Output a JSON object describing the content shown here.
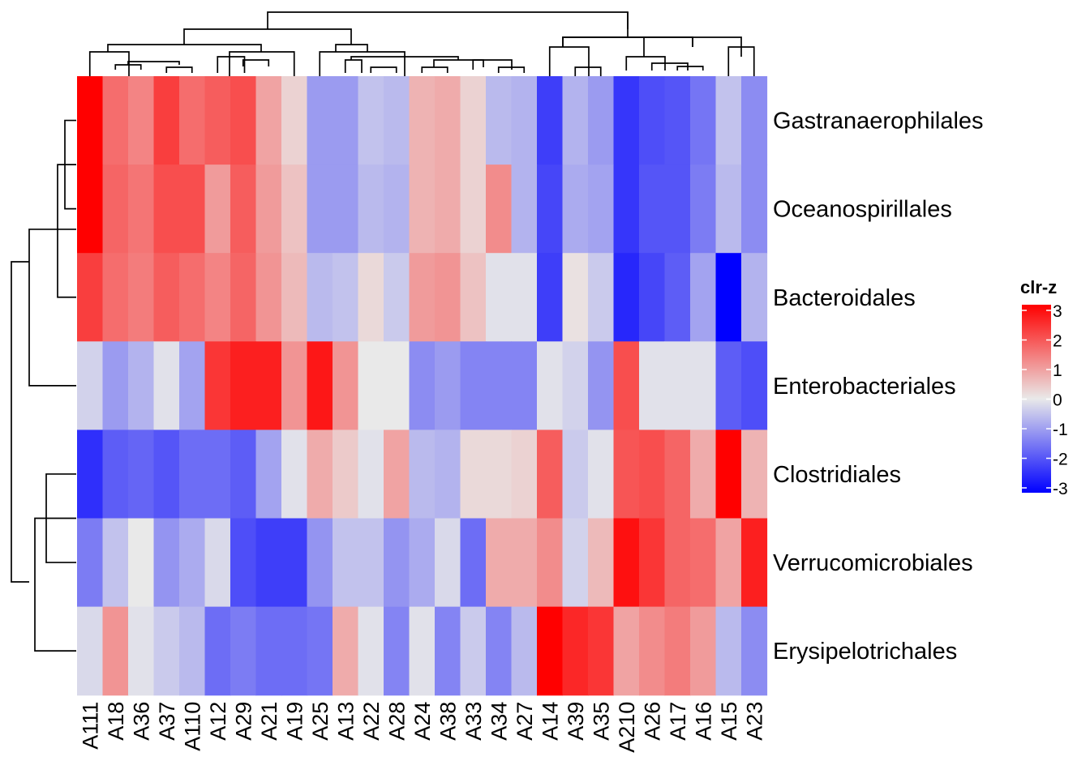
{
  "chart_data": {
    "type": "heatmap",
    "title": "",
    "xlabel": "",
    "ylabel": "",
    "rows": [
      "Gastranaerophilales",
      "Oceanospirillales",
      "Bacteroidales",
      "Enterobacteriales",
      "Clostridiales",
      "Verrucomicrobiales",
      "Erysipelotrichales"
    ],
    "columns": [
      "A111",
      "A18",
      "A36",
      "A37",
      "A110",
      "A12",
      "A29",
      "A21",
      "A19",
      "A25",
      "A13",
      "A22",
      "A28",
      "A24",
      "A38",
      "A33",
      "A34",
      "A27",
      "A14",
      "A39",
      "A35",
      "A210",
      "A26",
      "A17",
      "A16",
      "A15",
      "A23"
    ],
    "values": [
      [
        3.0,
        1.6,
        1.3,
        2.2,
        1.6,
        1.8,
        2.0,
        0.9,
        0.3,
        -1.0,
        -1.0,
        -0.5,
        -0.6,
        0.7,
        0.8,
        0.3,
        -0.6,
        -0.7,
        -2.2,
        -0.7,
        -1.0,
        -2.3,
        -2.0,
        -1.9,
        -1.5,
        -0.5,
        -1.2
      ],
      [
        3.0,
        1.7,
        1.5,
        2.0,
        2.0,
        1.0,
        1.8,
        1.0,
        0.5,
        -1.0,
        -1.0,
        -0.6,
        -0.7,
        0.7,
        0.8,
        0.3,
        1.2,
        -0.7,
        -2.1,
        -0.8,
        -0.9,
        -2.3,
        -1.9,
        -1.9,
        -1.4,
        -0.6,
        -1.2
      ],
      [
        2.2,
        1.6,
        1.4,
        1.8,
        1.6,
        1.3,
        1.7,
        1.1,
        0.6,
        -0.6,
        -0.5,
        0.2,
        -0.4,
        1.0,
        1.1,
        0.5,
        -0.1,
        -0.1,
        -2.2,
        0.1,
        -0.4,
        -2.5,
        -2.1,
        -1.8,
        -0.9,
        -3.0,
        -0.7
      ],
      [
        -0.3,
        -1.0,
        -0.7,
        -0.1,
        -0.9,
        2.3,
        2.6,
        2.6,
        1.1,
        2.7,
        1.1,
        0.0,
        0.0,
        -1.2,
        -1.0,
        -1.3,
        -1.3,
        -1.3,
        -0.1,
        -0.3,
        -1.1,
        2.0,
        -0.1,
        -0.1,
        -0.1,
        -1.8,
        -2.0
      ],
      [
        -2.4,
        -1.8,
        -1.7,
        -1.9,
        -1.6,
        -1.6,
        -1.8,
        -0.9,
        -0.1,
        0.8,
        0.4,
        -0.1,
        0.9,
        -0.6,
        -0.7,
        0.2,
        0.2,
        0.3,
        1.8,
        -0.4,
        -0.1,
        1.9,
        2.0,
        1.7,
        0.8,
        3.0,
        0.7
      ],
      [
        -1.4,
        -0.5,
        0.0,
        -1.1,
        -0.8,
        -0.2,
        -2.0,
        -2.2,
        -2.2,
        -1.1,
        -0.5,
        -0.5,
        -1.1,
        -0.8,
        -0.2,
        -1.6,
        0.8,
        0.8,
        1.2,
        -0.3,
        0.6,
        2.8,
        2.3,
        1.7,
        1.6,
        0.9,
        2.6
      ],
      [
        -0.2,
        1.1,
        -0.1,
        -0.4,
        -0.6,
        -1.6,
        -1.4,
        -1.6,
        -1.6,
        -1.5,
        0.8,
        -0.1,
        -1.3,
        -0.1,
        -1.3,
        -0.4,
        -1.3,
        -0.6,
        3.0,
        2.5,
        2.3,
        0.9,
        1.2,
        1.4,
        1.0,
        -0.6,
        -1.2
      ]
    ],
    "legend": {
      "title": "clr-z",
      "ticks": [
        "3",
        "2",
        "1",
        "0",
        "-1",
        "-2",
        "-3"
      ],
      "range": [
        -3,
        3
      ],
      "colors": {
        "low": "#0000FF",
        "mid": "#E9E9E9",
        "high": "#FF0000"
      },
      "placement": "right"
    },
    "row_dendrogram": true,
    "column_dendrogram": true
  }
}
